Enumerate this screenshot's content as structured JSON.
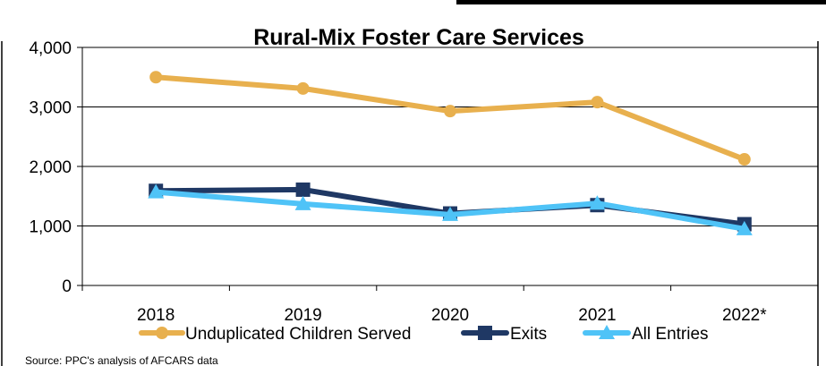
{
  "chart_data": {
    "type": "line",
    "title": "Rural-Mix Foster Care Services",
    "categories": [
      "2018",
      "2019",
      "2020",
      "2021",
      "2022*"
    ],
    "ylim": [
      0,
      4000
    ],
    "yticks": [
      "0",
      "1,000",
      "2,000",
      "3,000",
      "4,000"
    ],
    "ytick_values": [
      0,
      1000,
      2000,
      3000,
      4000
    ],
    "grid": true,
    "legend_position": "bottom",
    "series": [
      {
        "name": "Unduplicated Children Served",
        "values": [
          3500,
          3310,
          2930,
          3080,
          2120
        ],
        "color": "#E8B04E",
        "marker": "circle"
      },
      {
        "name": "Exits",
        "values": [
          1590,
          1610,
          1210,
          1350,
          1030
        ],
        "color": "#1F3864",
        "marker": "square"
      },
      {
        "name": "All Entries",
        "values": [
          1570,
          1370,
          1190,
          1380,
          950
        ],
        "color": "#4FC3F7",
        "marker": "triangle"
      }
    ],
    "source": "Source: PPC's analysis of AFCARS data"
  }
}
